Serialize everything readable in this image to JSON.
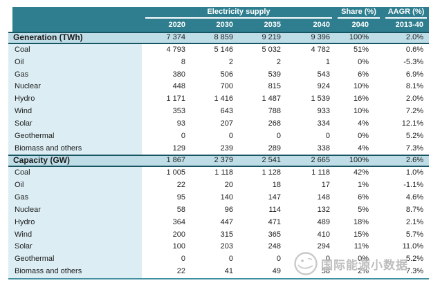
{
  "header": {
    "groups": [
      {
        "label": "Electricity supply"
      },
      {
        "label": "Share (%)"
      },
      {
        "label": "AAGR (%)"
      }
    ],
    "columns": [
      "2020",
      "2030",
      "2035",
      "2040",
      "2040",
      "2013-40"
    ]
  },
  "sections": [
    {
      "title": "Generation (TWh)",
      "totals": [
        "7 374",
        "8 859",
        "9 219",
        "9 396",
        "100%",
        "2.0%"
      ],
      "rows": [
        {
          "label": "Coal",
          "values": [
            "4 793",
            "5 146",
            "5 032",
            "4 782",
            "51%",
            "0.6%"
          ]
        },
        {
          "label": "Oil",
          "values": [
            "8",
            "2",
            "2",
            "1",
            "0%",
            "-5.3%"
          ]
        },
        {
          "label": "Gas",
          "values": [
            "380",
            "506",
            "539",
            "543",
            "6%",
            "6.9%"
          ]
        },
        {
          "label": "Nuclear",
          "values": [
            "448",
            "700",
            "815",
            "924",
            "10%",
            "8.1%"
          ]
        },
        {
          "label": "Hydro",
          "values": [
            "1 171",
            "1 416",
            "1 487",
            "1 539",
            "16%",
            "2.0%"
          ]
        },
        {
          "label": "Wind",
          "values": [
            "353",
            "643",
            "788",
            "933",
            "10%",
            "7.2%"
          ]
        },
        {
          "label": "Solar",
          "values": [
            "93",
            "207",
            "268",
            "334",
            "4%",
            "12.1%"
          ]
        },
        {
          "label": "Geothermal",
          "values": [
            "0",
            "0",
            "0",
            "0",
            "0%",
            "5.2%"
          ]
        },
        {
          "label": "Biomass and others",
          "values": [
            "129",
            "239",
            "289",
            "338",
            "4%",
            "7.3%"
          ]
        }
      ]
    },
    {
      "title": "Capacity (GW)",
      "totals": [
        "1 867",
        "2 379",
        "2 541",
        "2 665",
        "100%",
        "2.6%"
      ],
      "rows": [
        {
          "label": "Coal",
          "values": [
            "1 005",
            "1 118",
            "1 128",
            "1 118",
            "42%",
            "1.0%"
          ]
        },
        {
          "label": "Oil",
          "values": [
            "22",
            "20",
            "18",
            "17",
            "1%",
            "-1.1%"
          ]
        },
        {
          "label": "Gas",
          "values": [
            "95",
            "140",
            "147",
            "148",
            "6%",
            "4.6%"
          ]
        },
        {
          "label": "Nuclear",
          "values": [
            "58",
            "96",
            "114",
            "132",
            "5%",
            "8.7%"
          ]
        },
        {
          "label": "Hydro",
          "values": [
            "364",
            "447",
            "471",
            "489",
            "18%",
            "2.1%"
          ]
        },
        {
          "label": "Wind",
          "values": [
            "200",
            "315",
            "365",
            "410",
            "15%",
            "5.7%"
          ]
        },
        {
          "label": "Solar",
          "values": [
            "100",
            "203",
            "248",
            "294",
            "11%",
            "11.0%"
          ]
        },
        {
          "label": "Geothermal",
          "values": [
            "0",
            "0",
            "0",
            "0",
            "0%",
            "5.2%"
          ]
        },
        {
          "label": "Biomass and others",
          "values": [
            "22",
            "41",
            "49",
            "58",
            "2%",
            "7.3%"
          ]
        }
      ]
    }
  ],
  "watermark": {
    "text": "国际能源小数据"
  },
  "colors": {
    "header_teal": "#2E7E8F",
    "section_band_blue": "#BFDDE7",
    "label_column_blue": "#DCEEF4",
    "band_border_dark": "#175562",
    "table_bottom_border": "#418FA0",
    "watermark_gray": "#B3B3B3"
  },
  "chart_data": {
    "type": "table",
    "title": "Electricity supply",
    "column_groups": [
      "Electricity supply (2020-2040)",
      "Share (%) 2040",
      "AAGR (%) 2013-40"
    ],
    "columns": [
      "2020",
      "2030",
      "2035",
      "2040",
      "Share (%) 2040",
      "AAGR (%) 2013-40"
    ],
    "sections": [
      {
        "name": "Generation (TWh)",
        "total": [
          7374,
          8859,
          9219,
          9396,
          "100%",
          "2.0%"
        ],
        "rows": [
          [
            "Coal",
            4793,
            5146,
            5032,
            4782,
            "51%",
            "0.6%"
          ],
          [
            "Oil",
            8,
            2,
            2,
            1,
            "0%",
            "-5.3%"
          ],
          [
            "Gas",
            380,
            506,
            539,
            543,
            "6%",
            "6.9%"
          ],
          [
            "Nuclear",
            448,
            700,
            815,
            924,
            "10%",
            "8.1%"
          ],
          [
            "Hydro",
            1171,
            1416,
            1487,
            1539,
            "16%",
            "2.0%"
          ],
          [
            "Wind",
            353,
            643,
            788,
            933,
            "10%",
            "7.2%"
          ],
          [
            "Solar",
            93,
            207,
            268,
            334,
            "4%",
            "12.1%"
          ],
          [
            "Geothermal",
            0,
            0,
            0,
            0,
            "0%",
            "5.2%"
          ],
          [
            "Biomass and others",
            129,
            239,
            289,
            338,
            "4%",
            "7.3%"
          ]
        ]
      },
      {
        "name": "Capacity (GW)",
        "total": [
          1867,
          2379,
          2541,
          2665,
          "100%",
          "2.6%"
        ],
        "rows": [
          [
            "Coal",
            1005,
            1118,
            1128,
            1118,
            "42%",
            "1.0%"
          ],
          [
            "Oil",
            22,
            20,
            18,
            17,
            "1%",
            "-1.1%"
          ],
          [
            "Gas",
            95,
            140,
            147,
            148,
            "6%",
            "4.6%"
          ],
          [
            "Nuclear",
            58,
            96,
            114,
            132,
            "5%",
            "8.7%"
          ],
          [
            "Hydro",
            364,
            447,
            471,
            489,
            "18%",
            "2.1%"
          ],
          [
            "Wind",
            200,
            315,
            365,
            410,
            "15%",
            "5.7%"
          ],
          [
            "Solar",
            100,
            203,
            248,
            294,
            "11%",
            "11.0%"
          ],
          [
            "Geothermal",
            0,
            0,
            0,
            0,
            "0%",
            "5.2%"
          ],
          [
            "Biomass and others",
            22,
            41,
            49,
            58,
            "2%",
            "7.3%"
          ]
        ]
      }
    ]
  }
}
